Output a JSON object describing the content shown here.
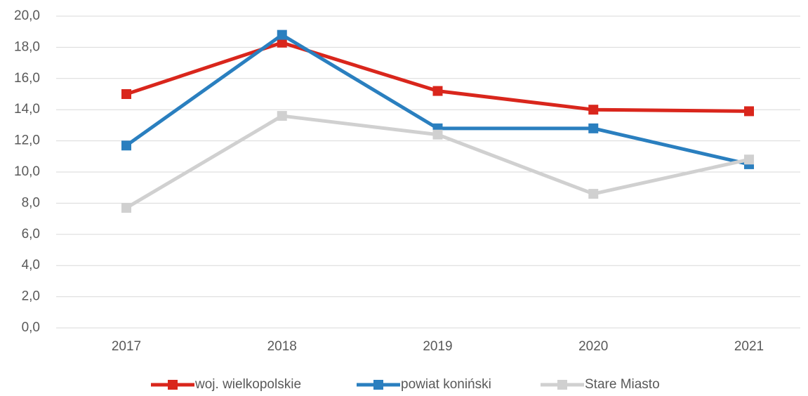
{
  "chart_data": {
    "type": "line",
    "categories": [
      "2017",
      "2018",
      "2019",
      "2020",
      "2021"
    ],
    "series": [
      {
        "name": "woj. wielkopolskie",
        "color": "#d9261c",
        "values": [
          15.0,
          18.3,
          15.2,
          14.0,
          13.9
        ]
      },
      {
        "name": "powiat koniński",
        "color": "#2a7fbf",
        "values": [
          11.7,
          18.8,
          12.8,
          12.8,
          10.5
        ]
      },
      {
        "name": "Stare Miasto",
        "color": "#d0d0d0",
        "values": [
          7.7,
          13.6,
          12.4,
          8.6,
          10.8
        ]
      }
    ],
    "ylim": [
      0,
      20
    ],
    "yticks": [
      {
        "value": 0,
        "label": "0,0"
      },
      {
        "value": 2,
        "label": "2,0"
      },
      {
        "value": 4,
        "label": "4,0"
      },
      {
        "value": 6,
        "label": "6,0"
      },
      {
        "value": 8,
        "label": "8,0"
      },
      {
        "value": 10,
        "label": "10,0"
      },
      {
        "value": 12,
        "label": "12,0"
      },
      {
        "value": 14,
        "label": "14,0"
      },
      {
        "value": 16,
        "label": "16,0"
      },
      {
        "value": 18,
        "label": "18,0"
      },
      {
        "value": 20,
        "label": "20,0"
      }
    ],
    "grid": true,
    "legend": "bottom"
  }
}
